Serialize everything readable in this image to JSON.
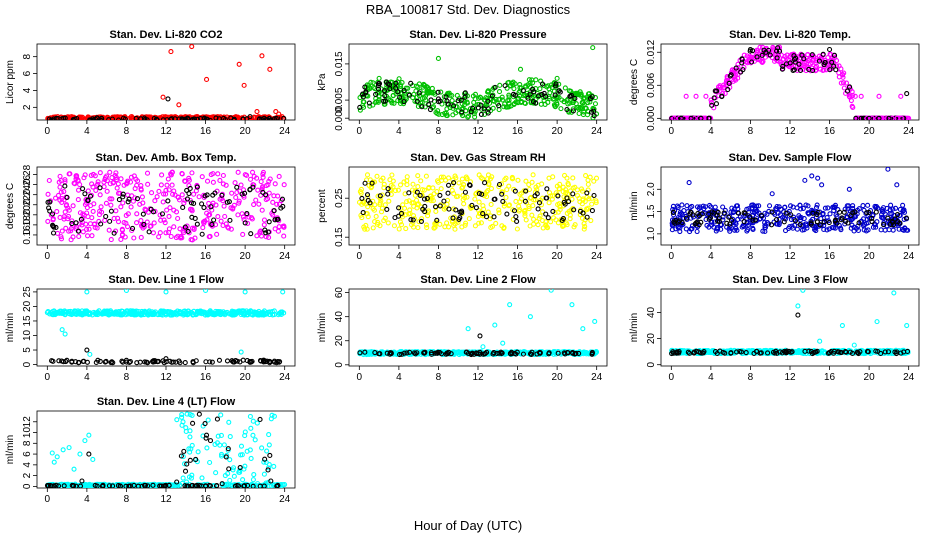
{
  "title": "RBA_100817  Std. Dev. Diagnostics",
  "xlabel": "Hour of Day (UTC)",
  "chart_data": [
    {
      "type": "scatter",
      "title": "Stan. Dev. Li-820 CO2",
      "ylabel": "Licor ppm",
      "xlim": [
        0,
        24
      ],
      "ylim": [
        0.5,
        9.5
      ],
      "xticks": [
        "0",
        "4",
        "8",
        "12",
        "16",
        "20",
        "24"
      ],
      "yticks": [
        "2",
        "4",
        "6",
        "8"
      ],
      "ytick_values": [
        2,
        4,
        6,
        8
      ],
      "colors": {
        "main": "#ff0000"
      },
      "series": [
        {
          "name": "",
          "color": "#ff0000",
          "band": [
            0.5,
            0.9
          ],
          "x": [
            11.7,
            12.5,
            13.3,
            14.6,
            16.1,
            19.4,
            19.9,
            21.2,
            21.7,
            22.5,
            23.1,
            23.4
          ],
          "y": [
            3.2,
            8.6,
            2.3,
            9.2,
            5.3,
            7.1,
            4.6,
            1.5,
            8.1,
            6.5,
            1.5,
            1.2
          ]
        },
        {
          "name": "",
          "color": "#000000",
          "band": [
            0.45,
            0.75
          ],
          "x": [
            12.2,
            20.5
          ],
          "y": [
            3.0,
            0.9
          ]
        }
      ]
    },
    {
      "type": "scatter",
      "title": "Stan. Dev. Li-820 Pressure",
      "ylabel": "kPa",
      "xlim": [
        0,
        24
      ],
      "ylim": [
        -0.0005,
        0.0205
      ],
      "xticks": [
        "0",
        "4",
        "8",
        "12",
        "16",
        "20",
        "24"
      ],
      "yticks": [
        "0.000",
        "0.005",
        "0.015"
      ],
      "ytick_values": [
        0.0,
        0.005,
        0.015
      ],
      "colors": {
        "main": "#00c000"
      },
      "series": [
        {
          "name": "",
          "color": "#00c000",
          "band": [
            0.002,
            0.009
          ],
          "x": [
            8.0,
            16.3,
            23.6,
            2.0,
            20.0
          ],
          "y": [
            0.0165,
            0.0135,
            0.0195,
            0.011,
            0.011
          ]
        },
        {
          "name": "",
          "color": "#000000",
          "band": [
            0.003,
            0.007
          ],
          "x": [],
          "y": []
        }
      ]
    },
    {
      "type": "scatter",
      "title": "Stan. Dev. Li-820 Temp.",
      "ylabel": "degrees C",
      "xlim": [
        0,
        24
      ],
      "ylim": [
        -0.0003,
        0.0135
      ],
      "xticks": [
        "0",
        "4",
        "8",
        "12",
        "16",
        "20",
        "24"
      ],
      "yticks": [
        "0.000",
        "0.006",
        "0.012"
      ],
      "ytick_values": [
        0.0,
        0.006,
        0.012
      ],
      "colors": {
        "main": "#ff00ff"
      },
      "series": [
        {
          "name": "",
          "color": "#ff00ff",
          "band": [
            0.0,
            0.0
          ],
          "x": [
            0.3,
            0.8,
            1.3,
            1.8,
            2.3,
            2.8,
            3.3,
            19.8,
            20.3,
            20.8,
            21.3,
            21.8,
            22.3,
            22.8,
            23.3,
            1.5,
            2.5,
            3.5,
            18.0,
            18.6,
            19.2,
            21.0,
            23.2
          ],
          "y": [
            0,
            0,
            0,
            0,
            0,
            0,
            0,
            0,
            0,
            0,
            0,
            0,
            0,
            0,
            0,
            0.004,
            0.004,
            0.004,
            0.004,
            0.004,
            0.004,
            0.004,
            0.004
          ]
        },
        {
          "name": "",
          "color": "#000000",
          "band": [
            0.0,
            0.0
          ],
          "x": [
            1,
            2,
            3,
            20,
            21,
            22,
            23.8,
            8,
            10,
            16
          ],
          "y": [
            0,
            0,
            0,
            0,
            0,
            0,
            0.0045,
            0.0125,
            0.0115,
            0.0125
          ]
        }
      ]
    },
    {
      "type": "scatter",
      "title": "Stan. Dev. Amb. Box Temp.",
      "ylabel": "degrees C",
      "xlim": [
        0,
        24
      ],
      "ylim": [
        0.14,
        0.295
      ],
      "xticks": [
        "0",
        "4",
        "8",
        "12",
        "16",
        "20",
        "24"
      ],
      "yticks": [
        "0.16",
        "0.18",
        "0.20",
        "0.22",
        "0.24",
        "0.26",
        "0.28"
      ],
      "ytick_values": [
        0.16,
        0.18,
        0.2,
        0.22,
        0.24,
        0.26,
        0.28
      ],
      "colors": {
        "main": "#ff00ff"
      },
      "series": [
        {
          "name": "",
          "color": "#ff00ff",
          "band": [
            0.15,
            0.285
          ],
          "x": [],
          "y": []
        },
        {
          "name": "",
          "color": "#000000",
          "band": [
            0.16,
            0.26
          ],
          "x": [],
          "y": []
        }
      ]
    },
    {
      "type": "scatter",
      "title": "Stan. Dev. Gas Stream RH",
      "ylabel": "percent",
      "xlim": [
        0,
        24
      ],
      "ylim": [
        0.13,
        0.33
      ],
      "xticks": [
        "0",
        "4",
        "8",
        "12",
        "16",
        "20",
        "24"
      ],
      "yticks": [
        "0.15",
        "0.25"
      ],
      "ytick_values": [
        0.15,
        0.25
      ],
      "colors": {
        "main": "#ffff00"
      },
      "series": [
        {
          "name": "",
          "color": "#ffff00",
          "band": [
            0.17,
            0.31
          ],
          "x": [],
          "y": []
        },
        {
          "name": "",
          "color": "#000000",
          "band": [
            0.19,
            0.29
          ],
          "x": [],
          "y": []
        }
      ]
    },
    {
      "type": "scatter",
      "title": "Stan. Dev. Sample Flow",
      "ylabel": "ml/min",
      "xlim": [
        0,
        24
      ],
      "ylim": [
        0.75,
        2.5
      ],
      "xticks": [
        "0",
        "4",
        "8",
        "12",
        "16",
        "20",
        "24"
      ],
      "yticks": [
        "1.0",
        "1.5",
        "2.0"
      ],
      "ytick_values": [
        1.0,
        1.5,
        2.0
      ],
      "colors": {
        "main": "#0000cc"
      },
      "series": [
        {
          "name": "",
          "color": "#0000cc",
          "band": [
            1.05,
            1.65
          ],
          "x": [
            1.8,
            13.5,
            14.2,
            14.8,
            15.2,
            21.9,
            22.8,
            18.0,
            10.2
          ],
          "y": [
            2.15,
            2.2,
            2.3,
            2.25,
            2.1,
            2.45,
            2.1,
            2.0,
            1.9
          ]
        },
        {
          "name": "",
          "color": "#000000",
          "band": [
            1.2,
            1.5
          ],
          "x": [],
          "y": []
        }
      ]
    },
    {
      "type": "scatter",
      "title": "Stan. Dev. Line 1 Flow",
      "ylabel": "ml/min",
      "xlim": [
        0,
        24
      ],
      "ylim": [
        -0.5,
        26
      ],
      "xticks": [
        "0",
        "4",
        "8",
        "12",
        "16",
        "20",
        "24"
      ],
      "yticks": [
        "0",
        "5",
        "10",
        "15",
        "20",
        "25"
      ],
      "ytick_values": [
        0,
        5,
        10,
        15,
        20,
        25
      ],
      "colors": {
        "main": "#00ffff"
      },
      "series": [
        {
          "name": "",
          "color": "#00ffff",
          "band": [
            17,
            18.5
          ],
          "x": [
            4.0,
            8.0,
            12.0,
            16.0,
            20.0,
            23.8,
            1.5,
            1.8,
            4.3,
            19.6
          ],
          "y": [
            25,
            25.5,
            25,
            25.5,
            25,
            25,
            12,
            10.5,
            3.5,
            4.3
          ]
        },
        {
          "name": "",
          "color": "#000000",
          "band": [
            0.6,
            1.5
          ],
          "x": [
            4.0,
            12.0
          ],
          "y": [
            5.0,
            2.0
          ]
        }
      ]
    },
    {
      "type": "scatter",
      "title": "Stan. Dev. Line 2 Flow",
      "ylabel": "ml/min",
      "xlim": [
        0,
        24
      ],
      "ylim": [
        -1,
        63
      ],
      "xticks": [
        "0",
        "4",
        "8",
        "12",
        "16",
        "20",
        "24"
      ],
      "yticks": [
        "0",
        "20",
        "40",
        "60"
      ],
      "ytick_values": [
        0,
        20,
        40,
        60
      ],
      "colors": {
        "main": "#00ffff"
      },
      "series": [
        {
          "name": "",
          "color": "#00ffff",
          "band": [
            8.5,
            11
          ],
          "x": [
            11.0,
            13.7,
            15.2,
            17.3,
            19.4,
            21.5,
            22.6,
            23.8,
            12.5,
            14.5
          ],
          "y": [
            30,
            33,
            50,
            40,
            62,
            50,
            30,
            36,
            15,
            18
          ]
        },
        {
          "name": "",
          "color": "#000000",
          "band": [
            8.5,
            10.5
          ],
          "x": [
            12.2
          ],
          "y": [
            24
          ]
        }
      ]
    },
    {
      "type": "scatter",
      "title": "Stan. Dev. Line 3 Flow",
      "ylabel": "ml/min",
      "xlim": [
        0,
        24
      ],
      "ylim": [
        -1,
        58
      ],
      "xticks": [
        "0",
        "4",
        "8",
        "12",
        "16",
        "20",
        "24"
      ],
      "yticks": [
        "0",
        "20",
        "40"
      ],
      "ytick_values": [
        0,
        20,
        40
      ],
      "colors": {
        "main": "#00ffff"
      },
      "series": [
        {
          "name": "",
          "color": "#00ffff",
          "band": [
            8.5,
            11
          ],
          "x": [
            13.3,
            12.8,
            17.3,
            20.8,
            22.5,
            23.8,
            18.5,
            15.0
          ],
          "y": [
            57,
            45,
            30,
            33,
            55,
            30,
            15,
            18
          ]
        },
        {
          "name": "",
          "color": "#000000",
          "band": [
            8.5,
            10.5
          ],
          "x": [
            12.8
          ],
          "y": [
            38
          ]
        }
      ]
    },
    {
      "type": "scatter",
      "title": "Stan. Dev. Line 4 (LT) Flow",
      "ylabel": "ml/min",
      "xlim": [
        0,
        24
      ],
      "ylim": [
        -0.3,
        14
      ],
      "xticks": [
        "0",
        "4",
        "8",
        "12",
        "16",
        "20",
        "24"
      ],
      "yticks": [
        "0",
        "2",
        "4",
        "6",
        "8",
        "10",
        "12"
      ],
      "ytick_values": [
        0,
        2,
        4,
        6,
        8,
        10,
        12
      ],
      "colors": {
        "main": "#00ffff"
      },
      "series": [
        {
          "name": "",
          "color": "#00ffff",
          "band": [
            0,
            0.4
          ],
          "x": [
            0.5,
            0.7,
            1.0,
            1.6,
            2.2,
            2.7,
            3.3,
            3.8,
            4.2,
            4.6
          ],
          "y": [
            6.2,
            4.5,
            5.5,
            6.8,
            7.2,
            3.2,
            6.0,
            8.5,
            9.5,
            5.0
          ]
        },
        {
          "name": "",
          "color": "#000000",
          "band": [
            0.0,
            0.2
          ],
          "x": [
            4.2,
            13.8,
            15.0,
            16.1,
            17.2,
            18.3,
            19.5,
            22.6,
            3.5,
            16.5
          ],
          "y": [
            6.0,
            6.5,
            5.0,
            9.5,
            12.5,
            7.0,
            3.5,
            1.0,
            1.0,
            8.5
          ]
        }
      ]
    }
  ]
}
